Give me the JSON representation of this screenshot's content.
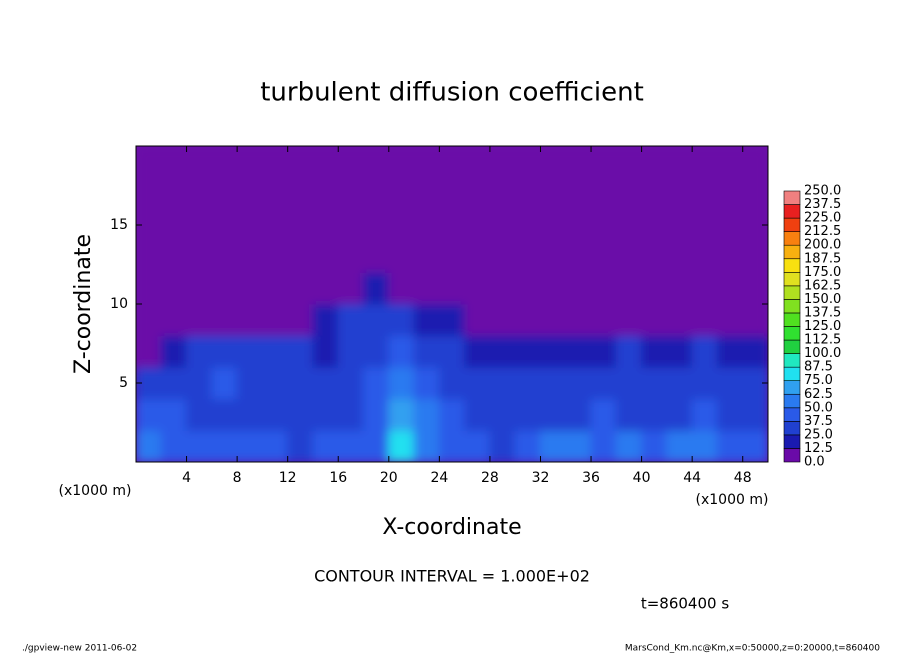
{
  "chart_data": {
    "type": "heatmap",
    "title": "turbulent diffusion coefficient",
    "x_label": "X-coordinate",
    "y_label": "Z-coordinate",
    "x_unit": "(x1000 m)",
    "y_unit": "(x1000 m)",
    "annotation": "CONTOUR INTERVAL = 1.000E+02",
    "time_label": "t=860400 s",
    "footer_left": "./gpview-new  2011-06-02",
    "footer_right": "MarsCond_Km.nc@Km,x=0:50000,z=0:20000,t=860400",
    "xlim": [
      0,
      50
    ],
    "xticks": [
      4,
      8,
      12,
      16,
      20,
      24,
      28,
      32,
      36,
      40,
      44,
      48
    ],
    "ylim": [
      0,
      20
    ],
    "yticks": [
      5,
      10,
      15
    ],
    "x": [
      1,
      3,
      5,
      7,
      9,
      11,
      13,
      15,
      17,
      19,
      21,
      23,
      25,
      27,
      29,
      31,
      33,
      35,
      37,
      39,
      41,
      43,
      45,
      47,
      49
    ],
    "y": [
      1,
      3,
      5,
      7,
      9,
      11,
      13,
      15,
      17,
      19
    ],
    "values": [
      [
        55,
        45,
        40,
        40,
        45,
        40,
        35,
        40,
        40,
        45,
        80,
        60,
        45,
        40,
        35,
        45,
        55,
        50,
        45,
        50,
        45,
        55,
        50,
        45,
        40
      ],
      [
        40,
        45,
        35,
        35,
        30,
        35,
        35,
        30,
        35,
        45,
        70,
        50,
        40,
        35,
        35,
        30,
        35,
        35,
        40,
        35,
        30,
        35,
        40,
        35,
        30
      ],
      [
        25,
        30,
        35,
        40,
        30,
        30,
        30,
        25,
        30,
        40,
        60,
        45,
        35,
        35,
        30,
        25,
        25,
        25,
        30,
        25,
        25,
        25,
        30,
        30,
        25
      ],
      [
        5,
        20,
        25,
        30,
        30,
        30,
        25,
        20,
        25,
        35,
        40,
        30,
        25,
        20,
        15,
        20,
        20,
        20,
        20,
        25,
        20,
        20,
        25,
        20,
        20
      ],
      [
        5,
        5,
        5,
        5,
        5,
        5,
        5,
        15,
        25,
        30,
        30,
        20,
        15,
        5,
        5,
        5,
        5,
        5,
        5,
        5,
        5,
        5,
        5,
        5,
        5
      ],
      [
        5,
        5,
        5,
        5,
        5,
        5,
        5,
        5,
        5,
        15,
        5,
        5,
        5,
        5,
        5,
        5,
        5,
        5,
        5,
        5,
        5,
        5,
        5,
        5,
        5
      ],
      [
        5,
        5,
        5,
        5,
        5,
        5,
        5,
        5,
        5,
        5,
        5,
        5,
        5,
        5,
        5,
        5,
        5,
        5,
        5,
        5,
        5,
        5,
        5,
        5,
        5
      ],
      [
        5,
        5,
        5,
        5,
        5,
        5,
        5,
        5,
        5,
        5,
        5,
        5,
        5,
        5,
        5,
        5,
        5,
        5,
        5,
        5,
        5,
        5,
        5,
        5,
        5
      ],
      [
        5,
        5,
        5,
        5,
        5,
        5,
        5,
        5,
        5,
        5,
        5,
        5,
        5,
        5,
        5,
        5,
        5,
        5,
        5,
        5,
        5,
        5,
        5,
        5,
        5
      ],
      [
        5,
        5,
        5,
        5,
        5,
        5,
        5,
        5,
        5,
        5,
        5,
        5,
        5,
        5,
        5,
        5,
        5,
        5,
        5,
        5,
        5,
        5,
        5,
        5,
        5
      ]
    ],
    "levels": [
      {
        "value": 0,
        "label": "0.0"
      },
      12.5,
      {
        "value": 25,
        "label": "25.0"
      },
      37.5,
      {
        "value": 50,
        "label": "50.0"
      },
      62.5,
      {
        "value": 75,
        "label": "75.0"
      },
      87.5,
      {
        "value": 100,
        "label": "100.0"
      },
      112.5,
      {
        "value": 125,
        "label": "125.0"
      },
      137.5,
      {
        "value": 150,
        "label": "150.0"
      },
      162.5,
      {
        "value": 175,
        "label": "175.0"
      },
      187.5,
      {
        "value": 200,
        "label": "200.0"
      },
      212.5,
      {
        "value": 225,
        "label": "225.0"
      },
      237.5,
      {
        "value": 250,
        "label": "250.0"
      }
    ],
    "colors": [
      "#6a0aa8",
      "#1a1ab0",
      "#2040d0",
      "#2a5ae8",
      "#2a7af0",
      "#30a0f0",
      "#20e0f0",
      "#20e8c0",
      "#20d040",
      "#30e030",
      "#50e020",
      "#80e020",
      "#b0e020",
      "#e0e020",
      "#f8e010",
      "#f8b010",
      "#f88010",
      "#f04010",
      "#e82020",
      "#f08080"
    ]
  }
}
